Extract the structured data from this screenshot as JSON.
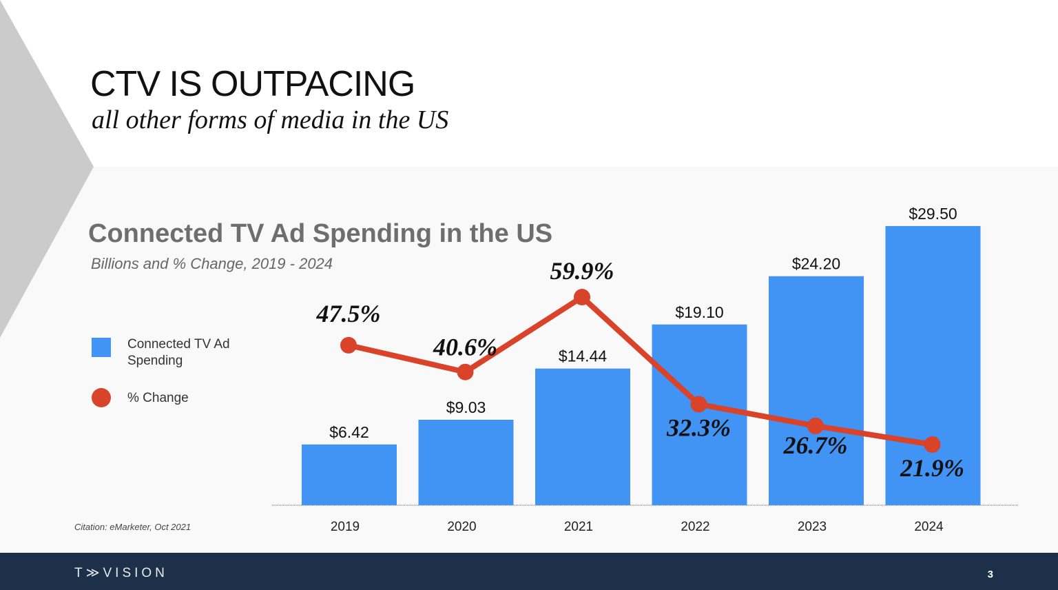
{
  "slide": {
    "title": "CTV IS OUTPACING",
    "subtitle": "all other forms of media in the US",
    "citation": "Citation: eMarketer, Oct 2021",
    "logo": "T≫VISION",
    "page_number": "3"
  },
  "colors": {
    "bar": "#4193f4",
    "line": "#d9432a",
    "footer": "#1c3049",
    "chevron": "#cbcbcb"
  },
  "chart_data": {
    "type": "bar+line",
    "title": "Connected TV Ad Spending in the US",
    "subtitle": "Billions and % Change, 2019 - 2024",
    "categories": [
      "2019",
      "2020",
      "2021",
      "2022",
      "2023",
      "2024"
    ],
    "series": [
      {
        "name": "Connected TV Ad Spending",
        "type": "bar",
        "values": [
          6.42,
          9.03,
          14.44,
          19.1,
          24.2,
          29.5
        ],
        "labels": [
          "$6.42",
          "$9.03",
          "$14.44",
          "$19.10",
          "$24.20",
          "$29.50"
        ]
      },
      {
        "name": "% Change",
        "type": "line",
        "values": [
          47.5,
          40.6,
          59.9,
          32.3,
          26.7,
          21.9
        ],
        "labels": [
          "47.5%",
          "40.6%",
          "59.9%",
          "32.3%",
          "26.7%",
          "21.9%"
        ]
      }
    ],
    "legend": "left",
    "grid": false
  }
}
